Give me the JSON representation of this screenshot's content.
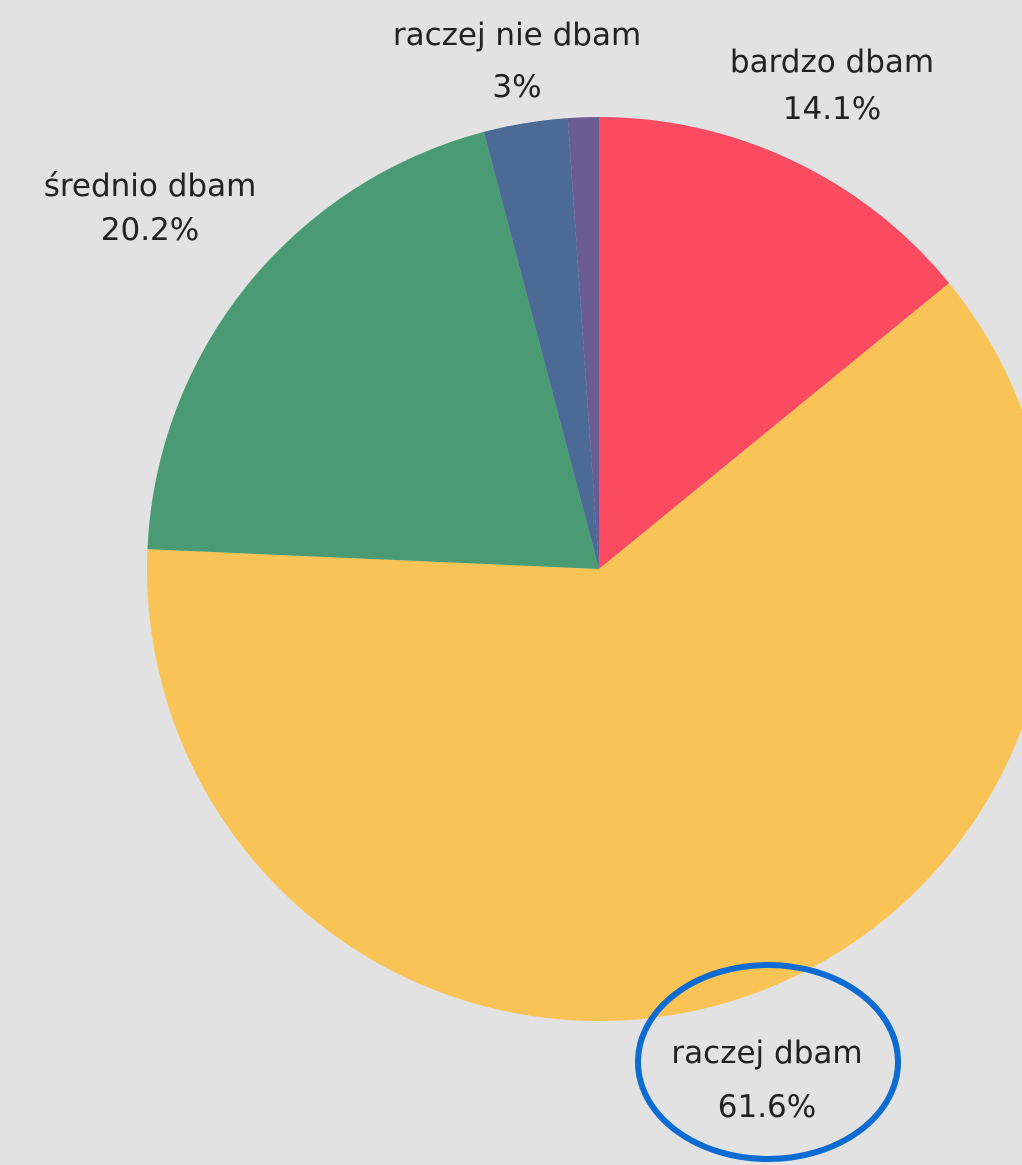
{
  "chart_data": {
    "type": "pie",
    "start_angle_deg": 0,
    "direction": "clockwise",
    "slices": [
      {
        "label": "bardzo dbam",
        "value": 14.1,
        "value_label": "14.1%",
        "color": "#fc4b60"
      },
      {
        "label": "raczej dbam",
        "value": 61.6,
        "value_label": "61.6%",
        "color": "#f9c356"
      },
      {
        "label": "średnio dbam",
        "value": 20.2,
        "value_label": "20.2%",
        "color": "#4a9b73"
      },
      {
        "label": "raczej nie dbam",
        "value": 3.0,
        "value_label": "3%",
        "color": "#4b6b96"
      },
      {
        "label": "",
        "value": 1.1,
        "value_label": "",
        "color": "#6a5c93"
      }
    ],
    "highlight": {
      "slice": "raczej dbam",
      "shape": "ellipse",
      "color": "#0d6cd3"
    }
  }
}
